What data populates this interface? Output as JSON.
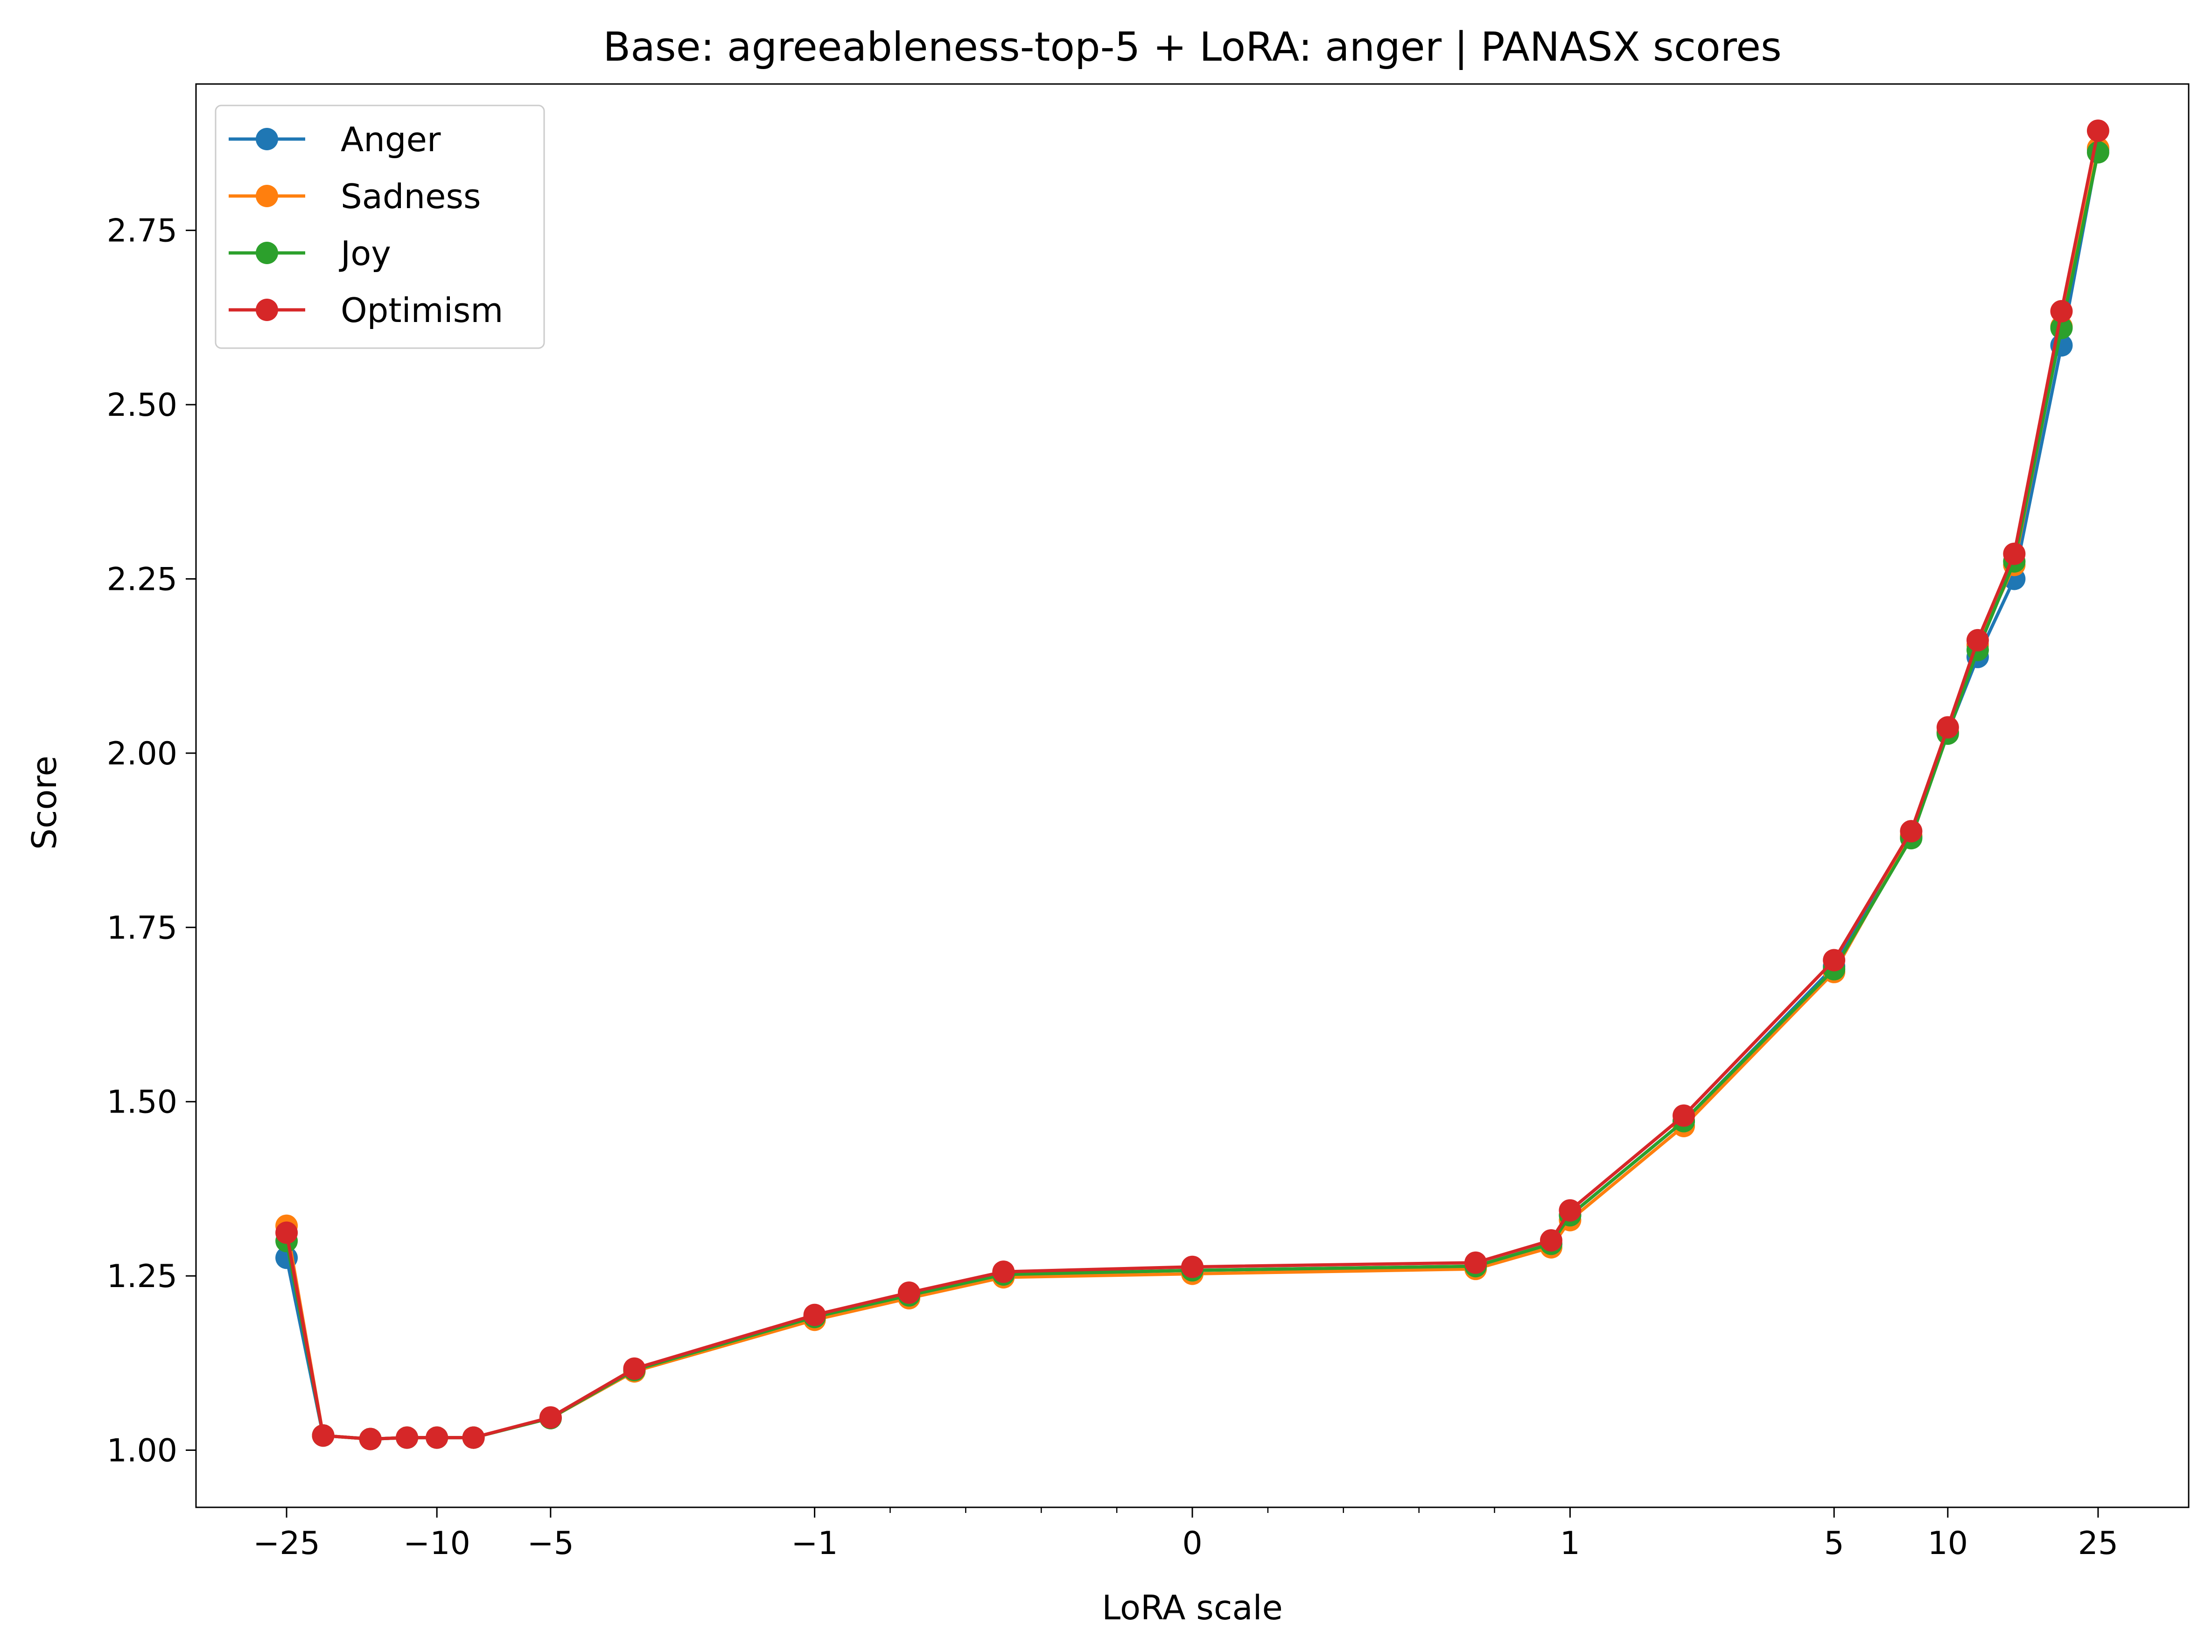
{
  "chart_data": {
    "type": "line",
    "title": "Base: agreeableness-top-5 + LoRA: anger | PANASX scores",
    "xlabel": "LoRA scale",
    "ylabel": "Score",
    "x_scale": "symlog",
    "ylim": [
      0.918,
      2.96
    ],
    "y_ticks": [
      "1.00",
      "1.25",
      "1.50",
      "1.75",
      "2.00",
      "2.25",
      "2.50",
      "2.75"
    ],
    "x_ticks": [
      {
        "value": -25,
        "label": "−25"
      },
      {
        "value": -10,
        "label": "−10"
      },
      {
        "value": -5,
        "label": "−5"
      },
      {
        "value": -1,
        "label": "−1"
      },
      {
        "value": 0,
        "label": "0"
      },
      {
        "value": 1,
        "label": "1"
      },
      {
        "value": 5,
        "label": "5"
      },
      {
        "value": 10,
        "label": "10"
      },
      {
        "value": 25,
        "label": "25"
      }
    ],
    "grid": false,
    "legend_position": "top-left",
    "x": [
      -25,
      -20,
      -15,
      -12,
      -10,
      -8,
      -5,
      -3,
      -1,
      -0.75,
      -0.5,
      0,
      0.75,
      0.95,
      1,
      2,
      5,
      8,
      10,
      12,
      15,
      20,
      25
    ],
    "series": [
      {
        "name": "Anger",
        "color": "#1f77b4",
        "values": [
          1.276,
          1.021,
          1.016,
          1.018,
          1.018,
          1.018,
          1.046,
          1.115,
          1.191,
          1.222,
          1.252,
          1.258,
          1.264,
          1.296,
          1.337,
          1.472,
          1.694,
          1.88,
          2.03,
          2.138,
          2.25,
          2.585,
          2.866
        ]
      },
      {
        "name": "Sadness",
        "color": "#ff7f0e",
        "values": [
          1.322,
          1.021,
          1.016,
          1.018,
          1.018,
          1.018,
          1.046,
          1.113,
          1.187,
          1.218,
          1.248,
          1.253,
          1.26,
          1.291,
          1.33,
          1.465,
          1.686,
          1.882,
          2.03,
          2.155,
          2.27,
          2.612,
          2.868
        ]
      },
      {
        "name": "Joy",
        "color": "#2ca02c",
        "values": [
          1.3,
          1.021,
          1.016,
          1.018,
          1.018,
          1.018,
          1.046,
          1.115,
          1.191,
          1.222,
          1.252,
          1.258,
          1.264,
          1.296,
          1.337,
          1.472,
          1.69,
          1.878,
          2.028,
          2.148,
          2.275,
          2.61,
          2.862
        ]
      },
      {
        "name": "Optimism",
        "color": "#d62728",
        "values": [
          1.312,
          1.021,
          1.016,
          1.018,
          1.018,
          1.018,
          1.047,
          1.117,
          1.194,
          1.226,
          1.256,
          1.263,
          1.269,
          1.301,
          1.344,
          1.48,
          1.703,
          1.888,
          2.037,
          2.162,
          2.286,
          2.634,
          2.893
        ]
      }
    ]
  }
}
